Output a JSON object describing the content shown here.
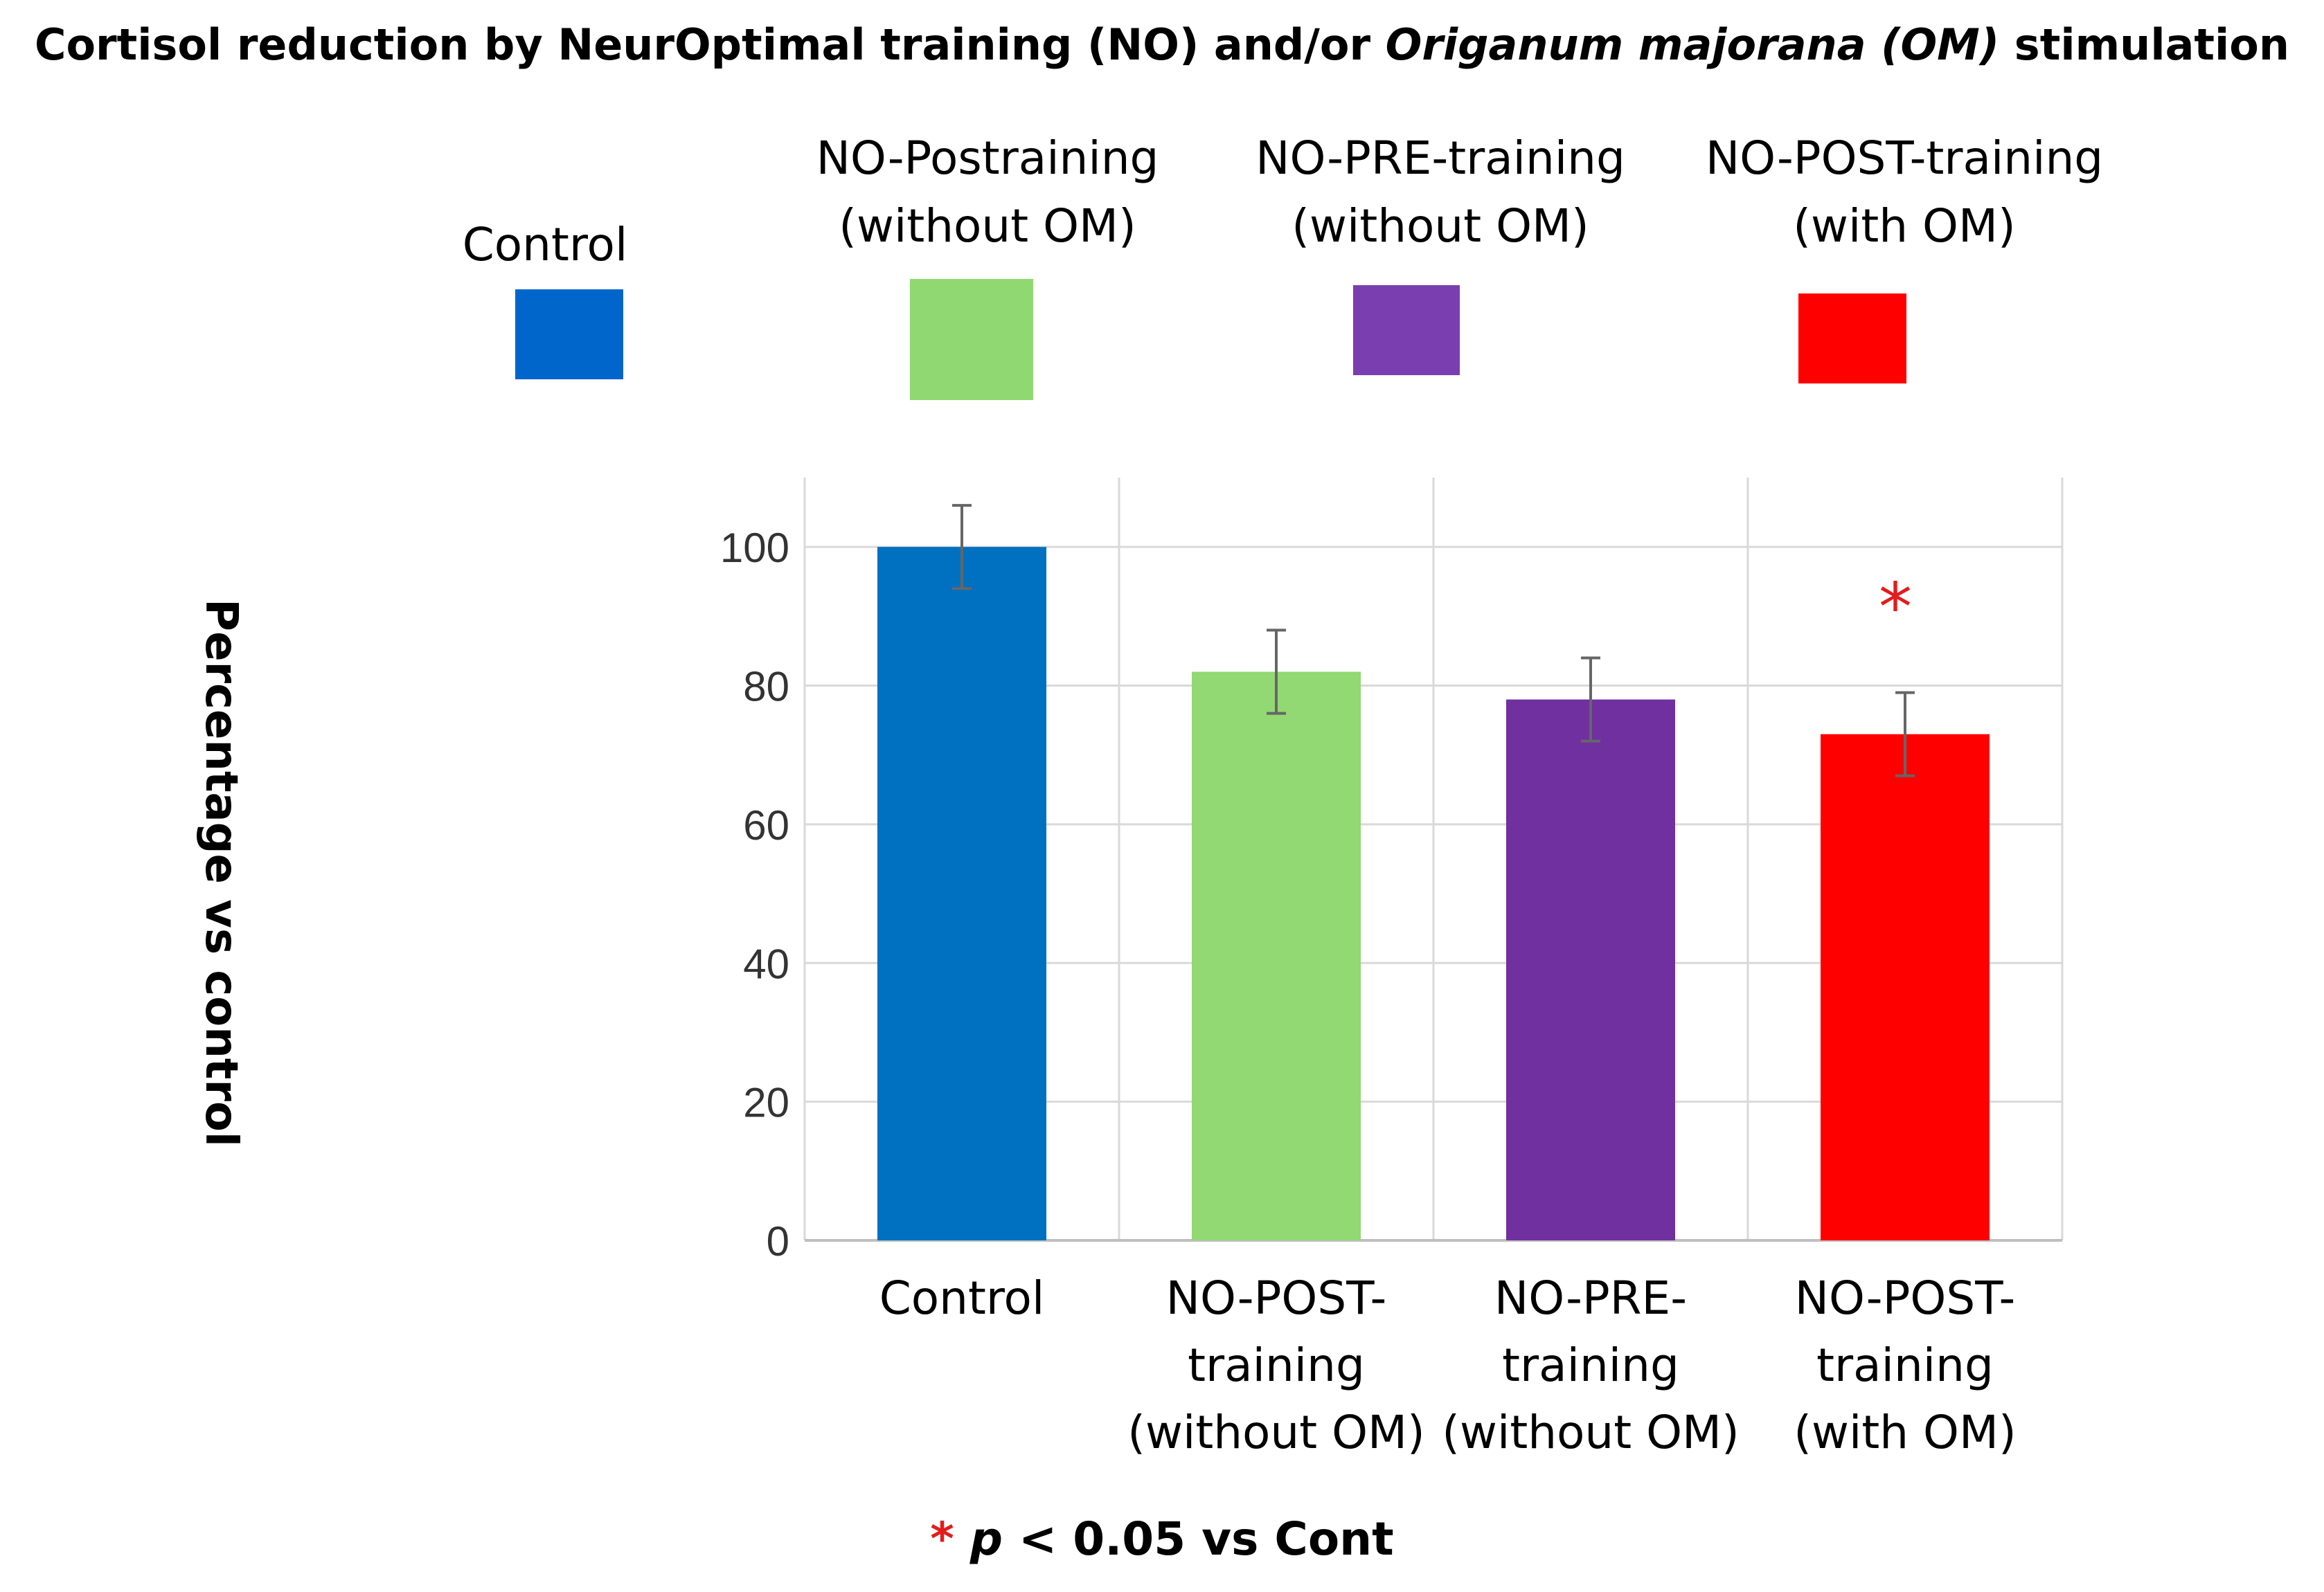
{
  "title": {
    "part1": "Cortisol reduction by NeurOptimal training (NO) and/or ",
    "italic": "Origanum majorana (OM)",
    "part2": " stimulation"
  },
  "legend": [
    {
      "label": "Control",
      "color": "#0066cc"
    },
    {
      "label": "NO-Postraining\n(without OM)",
      "color": "#8fd872"
    },
    {
      "label": "NO-PRE-training\n(without OM)",
      "color": "#7a3eb0"
    },
    {
      "label": "NO-POST-training\n(with OM)",
      "color": "#ff0000"
    }
  ],
  "footnote": {
    "star": "*",
    "p": "p",
    "rest": " < 0.05 vs Cont"
  },
  "chart_data": {
    "type": "bar",
    "title": "Cortisol reduction by NeurOptimal training (NO) and/or Origanum majorana (OM) stimulation",
    "ylabel": "Percentage vs control",
    "xlabel": "",
    "categories": [
      "Control",
      "NO-POST-\ntraining\n(without OM)",
      "NO-PRE-\ntraining\n(without OM)",
      "NO-POST-\ntraining\n(with OM)"
    ],
    "values": [
      100,
      82,
      78,
      73
    ],
    "errors": [
      6,
      6,
      6,
      6
    ],
    "colors": [
      "#0070c0",
      "#92d873",
      "#7030a0",
      "#ff0000"
    ],
    "significance": [
      "",
      "",
      "",
      "*"
    ],
    "ylim": [
      0,
      110
    ],
    "yticks": [
      0,
      20,
      40,
      60,
      80,
      100
    ],
    "grid": true,
    "legend_position": "top"
  }
}
